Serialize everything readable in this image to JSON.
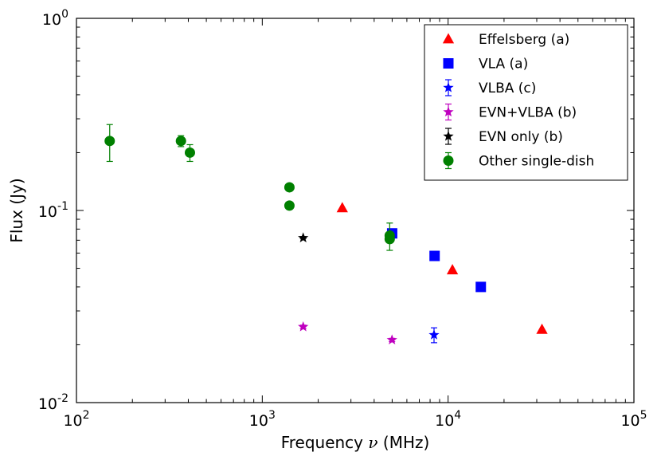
{
  "chart_data": {
    "type": "scatter",
    "xscale": "log",
    "yscale": "log",
    "xlabel_text": "Frequency",
    "xlabel_symbol": "ν",
    "xlabel_units": "(MHz)",
    "ylabel": "Flux (Jy)",
    "xlim": [
      100,
      100000
    ],
    "ylim": [
      0.01,
      1
    ],
    "grid": false,
    "legend_position": "top-right",
    "x_ticks": [
      {
        "base": "10",
        "exp": "2"
      },
      {
        "base": "10",
        "exp": "3"
      },
      {
        "base": "10",
        "exp": "4"
      },
      {
        "base": "10",
        "exp": "5"
      }
    ],
    "y_ticks": [
      {
        "base": "10",
        "exp": "-2"
      },
      {
        "base": "10",
        "exp": "-1"
      },
      {
        "base": "10",
        "exp": "0"
      }
    ],
    "series": [
      {
        "name": "Effelsberg (a)",
        "marker": "triangle",
        "color": "#ff0000",
        "errorbars": false,
        "points": [
          {
            "x": 2695,
            "y": 0.103
          },
          {
            "x": 10550,
            "y": 0.049
          },
          {
            "x": 32000,
            "y": 0.024
          }
        ]
      },
      {
        "name": "VLA (a)",
        "marker": "square",
        "color": "#0000ff",
        "errorbars": false,
        "points": [
          {
            "x": 5000,
            "y": 0.076
          },
          {
            "x": 8460,
            "y": 0.058
          },
          {
            "x": 15000,
            "y": 0.04
          }
        ]
      },
      {
        "name": "VLBA (c)",
        "marker": "star",
        "color": "#0000ff",
        "errorbars": true,
        "points": [
          {
            "x": 8400,
            "y": 0.0225,
            "ylo": 0.0205,
            "yhi": 0.0245
          }
        ]
      },
      {
        "name": "EVN+VLBA (b)",
        "marker": "star",
        "color": "#bf00bf",
        "errorbars": true,
        "points": [
          {
            "x": 1660,
            "y": 0.0248,
            "ylo": 0.0243,
            "yhi": 0.0253
          },
          {
            "x": 4990,
            "y": 0.0212,
            "ylo": 0.0208,
            "yhi": 0.0216
          }
        ]
      },
      {
        "name": "EVN only (b)",
        "marker": "star",
        "color": "#000000",
        "errorbars": true,
        "points": [
          {
            "x": 1660,
            "y": 0.072,
            "ylo": 0.0715,
            "yhi": 0.0725
          }
        ]
      },
      {
        "name": "Other single-dish",
        "marker": "circle",
        "color": "#008000",
        "errorbars": true,
        "points": [
          {
            "x": 151,
            "y": 0.23,
            "ylo": 0.18,
            "yhi": 0.28
          },
          {
            "x": 365,
            "y": 0.23,
            "ylo": 0.215,
            "yhi": 0.245
          },
          {
            "x": 408,
            "y": 0.2,
            "ylo": 0.18,
            "yhi": 0.22
          },
          {
            "x": 1400,
            "y": 0.132,
            "ylo": 0.13,
            "yhi": 0.134
          },
          {
            "x": 1400,
            "y": 0.106,
            "ylo": 0.104,
            "yhi": 0.108
          },
          {
            "x": 4850,
            "y": 0.074,
            "ylo": 0.062,
            "yhi": 0.086
          },
          {
            "x": 4850,
            "y": 0.071,
            "ylo": 0.069,
            "yhi": 0.073
          }
        ]
      }
    ]
  }
}
